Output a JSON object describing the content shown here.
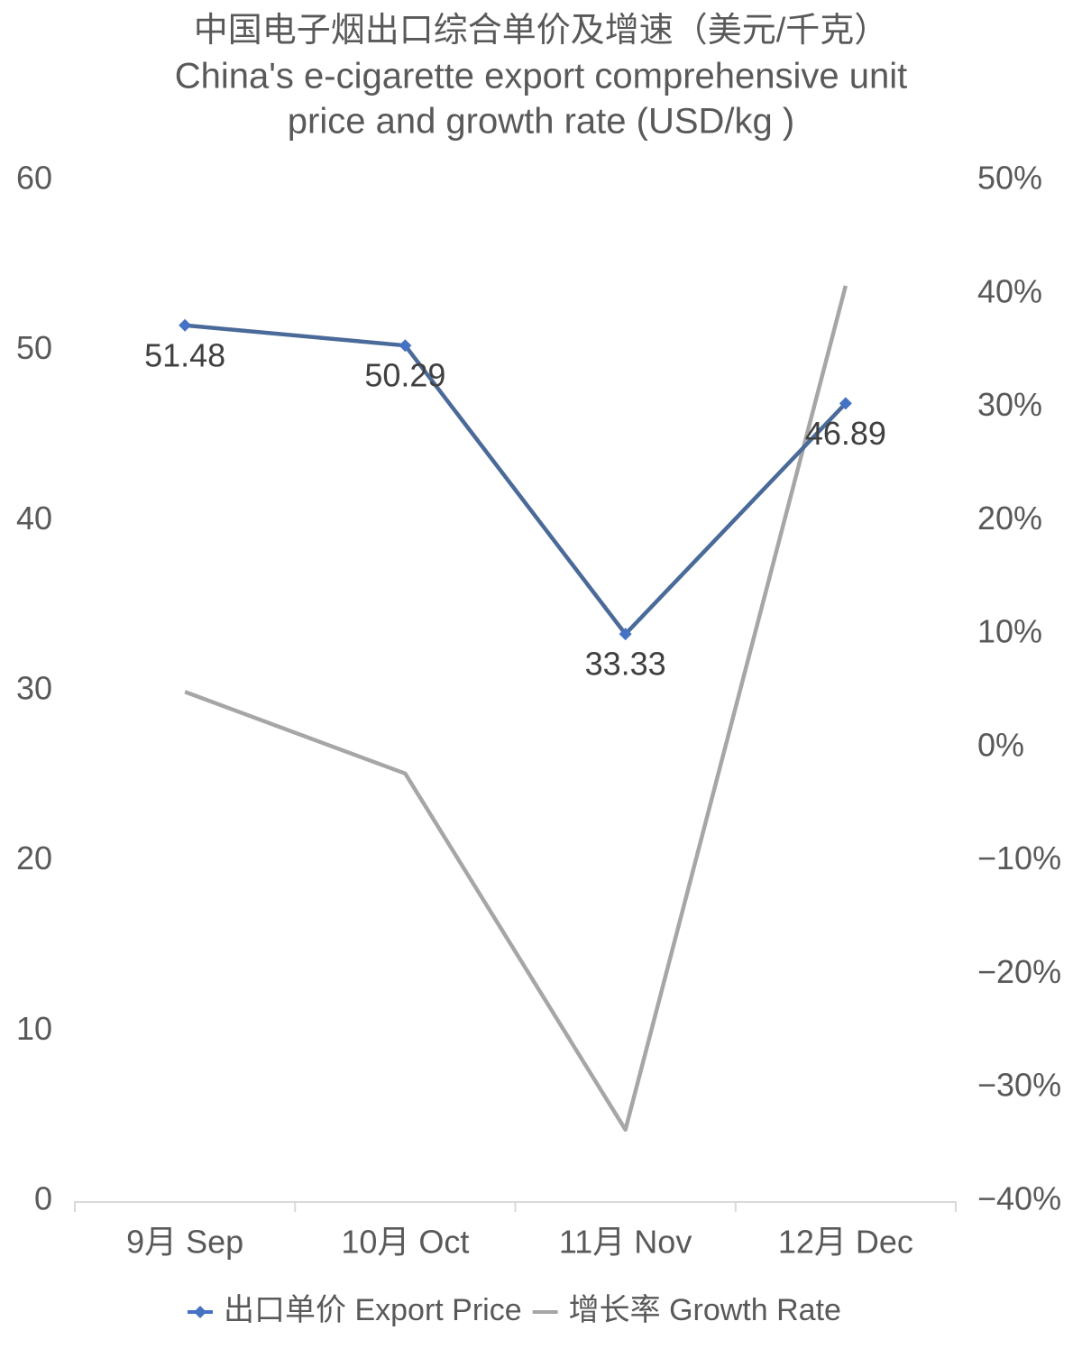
{
  "chart_data": {
    "type": "line",
    "title": [
      "中国电子烟出口综合单价及增速（美元/千克）",
      "China's e-cigarette export comprehensive unit",
      "price and growth rate (USD/kg )"
    ],
    "categories": [
      "9月 Sep",
      "10月 Oct",
      "11月 Nov",
      "12月 Dec"
    ],
    "series": [
      {
        "name": "出口单价 Export Price",
        "color": "#4a6a99",
        "marker_color": "#4472c4",
        "values": [
          51.48,
          50.29,
          33.33,
          46.89
        ]
      },
      {
        "name": "增长率 Growth Rate",
        "color": "#a6a6a6",
        "axis": "y2",
        "values": [
          4.9,
          -2.3,
          -33.7,
          40.7
        ]
      }
    ],
    "ylim": [
      0,
      60
    ],
    "yticks": [
      0,
      10,
      20,
      30,
      40,
      50,
      60
    ],
    "y2lim": [
      -40,
      50
    ],
    "y2ticks": [
      {
        "value": -40,
        "label": "−40%"
      },
      {
        "value": -30,
        "label": "−30%"
      },
      {
        "value": -20,
        "label": "−20%"
      },
      {
        "value": -10,
        "label": "−10%"
      },
      {
        "value": 0,
        "label": "0%"
      },
      {
        "value": 10,
        "label": "10%"
      },
      {
        "value": 20,
        "label": "20%"
      },
      {
        "value": 30,
        "label": "30%"
      },
      {
        "value": 40,
        "label": "40%"
      },
      {
        "value": 50,
        "label": "50%"
      }
    ],
    "grid": false,
    "legend": "bottom"
  }
}
